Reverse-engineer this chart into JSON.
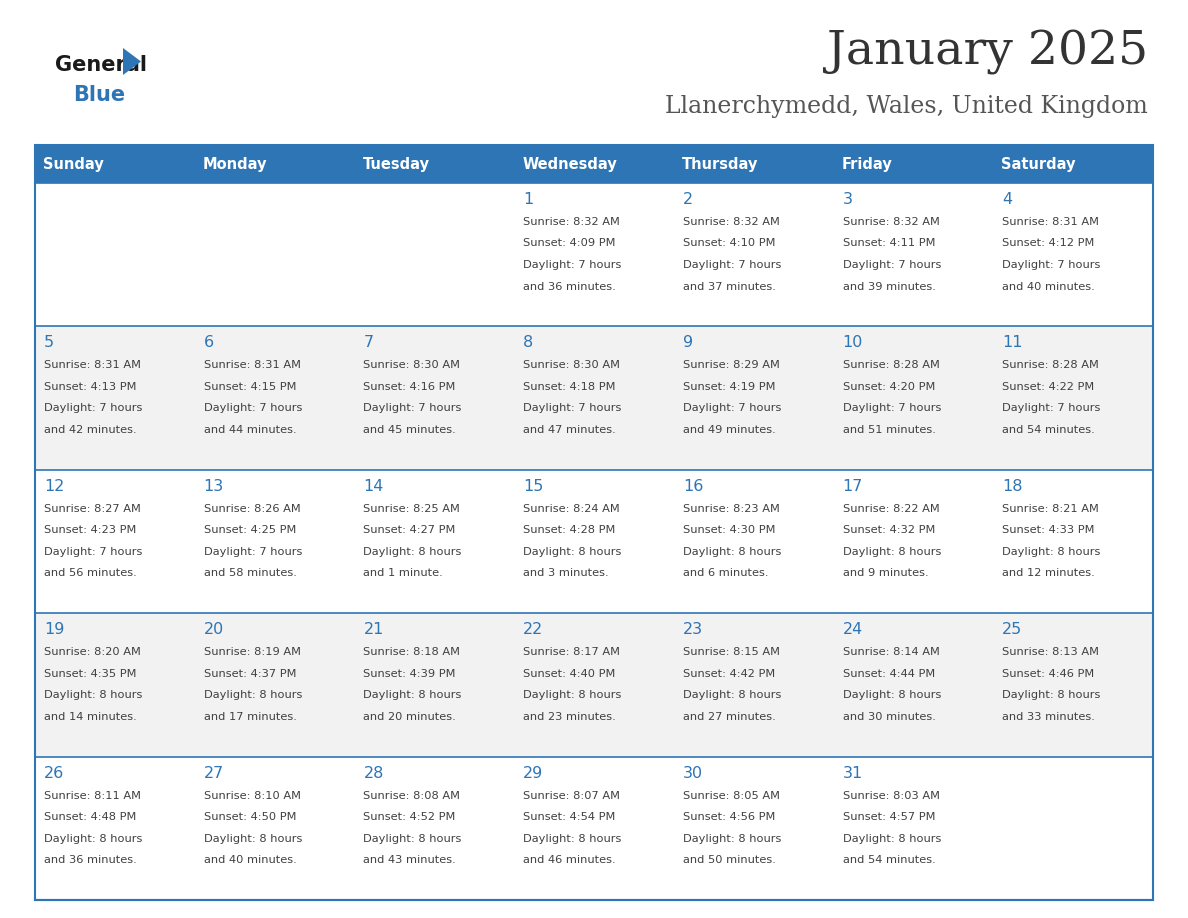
{
  "title": "January 2025",
  "subtitle": "Llanerchymedd, Wales, United Kingdom",
  "days_of_week": [
    "Sunday",
    "Monday",
    "Tuesday",
    "Wednesday",
    "Thursday",
    "Friday",
    "Saturday"
  ],
  "header_bg": "#2E75B6",
  "header_text": "#FFFFFF",
  "row_bg_even": "#FFFFFF",
  "row_bg_odd": "#F2F2F2",
  "cell_text_color": "#404040",
  "day_num_color": "#2E75B6",
  "border_color": "#2E75B6",
  "title_color": "#333333",
  "subtitle_color": "#555555",
  "logo_general_color": "#1a1a1a",
  "logo_blue_color": "#2E75B6",
  "calendar_data": [
    [
      {
        "day": null,
        "sunrise": null,
        "sunset": null,
        "daylight": null
      },
      {
        "day": null,
        "sunrise": null,
        "sunset": null,
        "daylight": null
      },
      {
        "day": null,
        "sunrise": null,
        "sunset": null,
        "daylight": null
      },
      {
        "day": 1,
        "sunrise": "8:32 AM",
        "sunset": "4:09 PM",
        "daylight": "7 hours\nand 36 minutes."
      },
      {
        "day": 2,
        "sunrise": "8:32 AM",
        "sunset": "4:10 PM",
        "daylight": "7 hours\nand 37 minutes."
      },
      {
        "day": 3,
        "sunrise": "8:32 AM",
        "sunset": "4:11 PM",
        "daylight": "7 hours\nand 39 minutes."
      },
      {
        "day": 4,
        "sunrise": "8:31 AM",
        "sunset": "4:12 PM",
        "daylight": "7 hours\nand 40 minutes."
      }
    ],
    [
      {
        "day": 5,
        "sunrise": "8:31 AM",
        "sunset": "4:13 PM",
        "daylight": "7 hours\nand 42 minutes."
      },
      {
        "day": 6,
        "sunrise": "8:31 AM",
        "sunset": "4:15 PM",
        "daylight": "7 hours\nand 44 minutes."
      },
      {
        "day": 7,
        "sunrise": "8:30 AM",
        "sunset": "4:16 PM",
        "daylight": "7 hours\nand 45 minutes."
      },
      {
        "day": 8,
        "sunrise": "8:30 AM",
        "sunset": "4:18 PM",
        "daylight": "7 hours\nand 47 minutes."
      },
      {
        "day": 9,
        "sunrise": "8:29 AM",
        "sunset": "4:19 PM",
        "daylight": "7 hours\nand 49 minutes."
      },
      {
        "day": 10,
        "sunrise": "8:28 AM",
        "sunset": "4:20 PM",
        "daylight": "7 hours\nand 51 minutes."
      },
      {
        "day": 11,
        "sunrise": "8:28 AM",
        "sunset": "4:22 PM",
        "daylight": "7 hours\nand 54 minutes."
      }
    ],
    [
      {
        "day": 12,
        "sunrise": "8:27 AM",
        "sunset": "4:23 PM",
        "daylight": "7 hours\nand 56 minutes."
      },
      {
        "day": 13,
        "sunrise": "8:26 AM",
        "sunset": "4:25 PM",
        "daylight": "7 hours\nand 58 minutes."
      },
      {
        "day": 14,
        "sunrise": "8:25 AM",
        "sunset": "4:27 PM",
        "daylight": "8 hours\nand 1 minute."
      },
      {
        "day": 15,
        "sunrise": "8:24 AM",
        "sunset": "4:28 PM",
        "daylight": "8 hours\nand 3 minutes."
      },
      {
        "day": 16,
        "sunrise": "8:23 AM",
        "sunset": "4:30 PM",
        "daylight": "8 hours\nand 6 minutes."
      },
      {
        "day": 17,
        "sunrise": "8:22 AM",
        "sunset": "4:32 PM",
        "daylight": "8 hours\nand 9 minutes."
      },
      {
        "day": 18,
        "sunrise": "8:21 AM",
        "sunset": "4:33 PM",
        "daylight": "8 hours\nand 12 minutes."
      }
    ],
    [
      {
        "day": 19,
        "sunrise": "8:20 AM",
        "sunset": "4:35 PM",
        "daylight": "8 hours\nand 14 minutes."
      },
      {
        "day": 20,
        "sunrise": "8:19 AM",
        "sunset": "4:37 PM",
        "daylight": "8 hours\nand 17 minutes."
      },
      {
        "day": 21,
        "sunrise": "8:18 AM",
        "sunset": "4:39 PM",
        "daylight": "8 hours\nand 20 minutes."
      },
      {
        "day": 22,
        "sunrise": "8:17 AM",
        "sunset": "4:40 PM",
        "daylight": "8 hours\nand 23 minutes."
      },
      {
        "day": 23,
        "sunrise": "8:15 AM",
        "sunset": "4:42 PM",
        "daylight": "8 hours\nand 27 minutes."
      },
      {
        "day": 24,
        "sunrise": "8:14 AM",
        "sunset": "4:44 PM",
        "daylight": "8 hours\nand 30 minutes."
      },
      {
        "day": 25,
        "sunrise": "8:13 AM",
        "sunset": "4:46 PM",
        "daylight": "8 hours\nand 33 minutes."
      }
    ],
    [
      {
        "day": 26,
        "sunrise": "8:11 AM",
        "sunset": "4:48 PM",
        "daylight": "8 hours\nand 36 minutes."
      },
      {
        "day": 27,
        "sunrise": "8:10 AM",
        "sunset": "4:50 PM",
        "daylight": "8 hours\nand 40 minutes."
      },
      {
        "day": 28,
        "sunrise": "8:08 AM",
        "sunset": "4:52 PM",
        "daylight": "8 hours\nand 43 minutes."
      },
      {
        "day": 29,
        "sunrise": "8:07 AM",
        "sunset": "4:54 PM",
        "daylight": "8 hours\nand 46 minutes."
      },
      {
        "day": 30,
        "sunrise": "8:05 AM",
        "sunset": "4:56 PM",
        "daylight": "8 hours\nand 50 minutes."
      },
      {
        "day": 31,
        "sunrise": "8:03 AM",
        "sunset": "4:57 PM",
        "daylight": "8 hours\nand 54 minutes."
      },
      {
        "day": null,
        "sunrise": null,
        "sunset": null,
        "daylight": null
      }
    ]
  ]
}
